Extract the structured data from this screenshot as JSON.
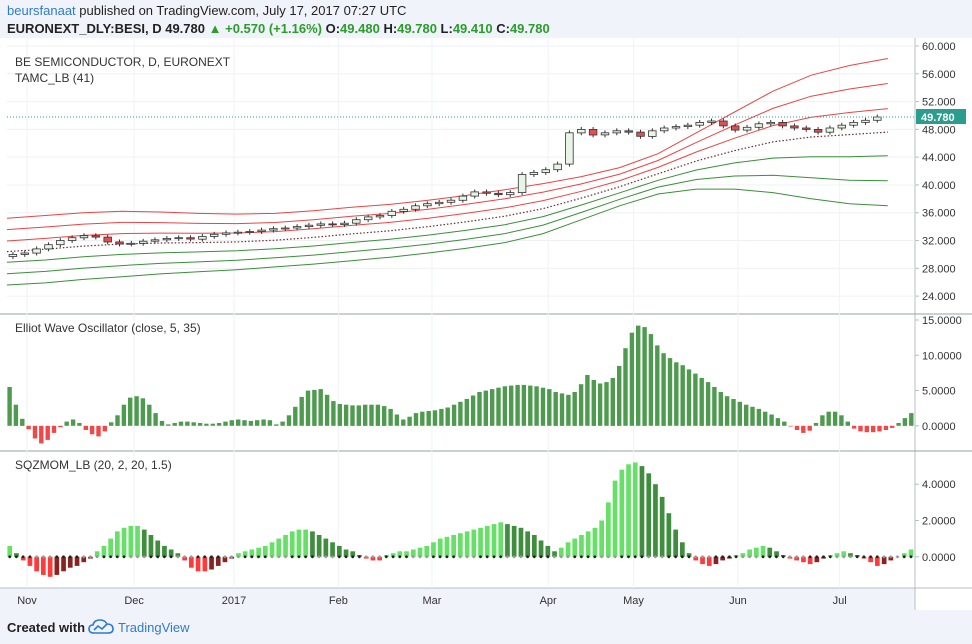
{
  "header": {
    "user": "beursfanaat",
    "published": "published on TradingView.com, July 17, 2017 07:27 UTC",
    "symbol": "EURONEXT_DLY:BESI, D",
    "last": "49.780",
    "change": "+0.570 (+1.16%)",
    "o_label": "O:",
    "o": "49.480",
    "h_label": "H:",
    "h": "49.780",
    "l_label": "L:",
    "l": "49.410",
    "c_label": "C:",
    "c": "49.780"
  },
  "footer": {
    "created": "Created with",
    "brand": "TradingView"
  },
  "colors": {
    "up": "#3a9a3a",
    "down": "#e05050",
    "accent": "#2e7bcf",
    "osc_up": "#4e9a4e",
    "osc_down": "#f04848",
    "mom_light": "#66e066",
    "mom_dark": "#3e8e3e"
  },
  "chart_data": [
    {
      "type": "candlestick",
      "title": "BE SEMICONDUCTOR, D, EURONEXT",
      "indicator_label": "TAMC_LB (41)",
      "y_ticks": [
        "60.000",
        "56.000",
        "52.000",
        "48.000",
        "44.000",
        "40.000",
        "36.000",
        "32.000",
        "28.000",
        "24.000"
      ],
      "y_range": [
        22,
        60
      ],
      "last_price_label": "49.780",
      "x_labels": [
        "Nov",
        "Dec",
        "2017",
        "Feb",
        "Mar",
        "Apr",
        "May",
        "Jun",
        "Jul"
      ],
      "close_series": [
        30.0,
        30.2,
        30.8,
        31.4,
        32.0,
        32.4,
        32.7,
        32.5,
        31.8,
        31.5,
        31.6,
        31.9,
        32.1,
        32.3,
        32.4,
        32.2,
        32.6,
        32.9,
        33.1,
        33.2,
        33.3,
        33.5,
        33.7,
        33.8,
        34.0,
        34.2,
        34.4,
        34.3,
        34.5,
        35.0,
        35.4,
        35.6,
        36.2,
        36.5,
        37.0,
        37.3,
        37.5,
        37.8,
        38.4,
        39.0,
        38.8,
        38.6,
        38.9,
        41.5,
        41.8,
        42.2,
        43.0,
        47.5,
        48.0,
        47.2,
        47.5,
        47.8,
        47.6,
        47.0,
        47.8,
        48.2,
        48.4,
        48.6,
        49.0,
        49.2,
        48.5,
        47.9,
        48.3,
        48.8,
        49.0,
        48.5,
        48.2,
        48.0,
        47.6,
        48.2,
        48.6,
        49.0,
        49.3,
        49.78
      ],
      "bands_upper": [
        35.2,
        35.6,
        36.0,
        36.2,
        36.1,
        35.9,
        35.8,
        35.9,
        36.3,
        36.8,
        37.2,
        37.8,
        38.5,
        39.3,
        40.2,
        41.2,
        42.5,
        44.5,
        47.5,
        50.5,
        53.5,
        55.8,
        57.2,
        58.2
      ],
      "bands_lower": [
        25.6,
        25.9,
        26.4,
        26.8,
        27.2,
        27.5,
        27.8,
        28.2,
        28.6,
        29.1,
        29.6,
        30.2,
        30.9,
        31.7,
        33.0,
        35.0,
        37.0,
        38.7,
        39.4,
        39.4,
        38.9,
        38.0,
        37.3,
        37.0
      ]
    },
    {
      "type": "bar",
      "title": "Elliot Wave Oscillator (close, 5, 35)",
      "y_ticks": [
        "15.0000",
        "10.0000",
        "5.0000",
        "0.0000"
      ],
      "y_range": [
        -3,
        15
      ],
      "values": [
        5.5,
        3.0,
        1.0,
        -0.5,
        -1.8,
        -2.5,
        -2.0,
        -1.0,
        -0.2,
        0.6,
        0.9,
        0.4,
        -0.6,
        -1.2,
        -1.5,
        -0.8,
        0.5,
        1.5,
        3.0,
        4.0,
        4.2,
        3.9,
        3.0,
        1.8,
        0.7,
        0.2,
        0.4,
        0.6,
        0.6,
        0.5,
        0.4,
        0.3,
        0.3,
        0.4,
        0.6,
        0.8,
        0.9,
        0.8,
        0.7,
        0.8,
        0.9,
        0.8,
        0.2,
        0.6,
        1.5,
        2.7,
        4.1,
        5.0,
        5.1,
        5.2,
        4.4,
        3.5,
        3.1,
        3.0,
        2.9,
        2.9,
        3.0,
        3.0,
        3.0,
        2.8,
        2.4,
        1.6,
        0.9,
        1.3,
        1.8,
        2.0,
        2.1,
        2.2,
        2.4,
        2.6,
        3.0,
        3.4,
        3.8,
        4.3,
        4.8,
        5.0,
        5.2,
        5.4,
        5.6,
        5.7,
        5.8,
        5.8,
        5.7,
        5.6,
        5.4,
        5.2,
        4.8,
        4.6,
        4.4,
        4.8,
        5.9,
        7.2,
        6.5,
        6.0,
        6.2,
        6.8,
        8.5,
        11.0,
        13.2,
        14.2,
        14.0,
        13.0,
        11.4,
        10.3,
        9.6,
        9.0,
        8.6,
        8.0,
        7.4,
        6.8,
        6.2,
        5.5,
        4.8,
        4.2,
        3.8,
        3.4,
        3.0,
        2.7,
        2.4,
        2.0,
        1.6,
        1.1,
        0.6,
        -0.1,
        -0.6,
        -1.0,
        -0.7,
        0.4,
        1.5,
        2.0,
        2.0,
        1.5,
        0.6,
        -0.4,
        -0.8,
        -0.9,
        -0.9,
        -0.8,
        -0.6,
        -0.3,
        0.4,
        1.1,
        1.8
      ]
    },
    {
      "type": "bar",
      "title": "SQZMOM_LB (20, 2, 20, 1.5)",
      "y_ticks": [
        "4.0000",
        "2.0000",
        "0.0000"
      ],
      "y_range": [
        -1.5,
        5.5
      ],
      "values": [
        0.6,
        0.2,
        -0.2,
        -0.5,
        -0.8,
        -1.0,
        -1.1,
        -1.0,
        -0.8,
        -0.6,
        -0.5,
        -0.3,
        -0.1,
        0.3,
        0.6,
        1.0,
        1.4,
        1.6,
        1.7,
        1.7,
        1.5,
        1.2,
        0.9,
        0.6,
        0.4,
        0.2,
        -0.2,
        -0.6,
        -0.8,
        -0.8,
        -0.7,
        -0.5,
        -0.3,
        -0.1,
        0.2,
        0.3,
        0.4,
        0.5,
        0.6,
        0.8,
        1.0,
        1.2,
        1.4,
        1.5,
        1.5,
        1.4,
        1.2,
        1.0,
        0.8,
        0.6,
        0.4,
        0.3,
        0.1,
        -0.1,
        -0.2,
        -0.2,
        0.1,
        0.2,
        0.3,
        0.3,
        0.4,
        0.5,
        0.6,
        0.8,
        1.0,
        1.1,
        1.2,
        1.3,
        1.4,
        1.5,
        1.6,
        1.7,
        1.8,
        1.9,
        1.8,
        1.7,
        1.6,
        1.4,
        1.2,
        0.9,
        0.6,
        0.3,
        0.5,
        0.8,
        1.0,
        1.2,
        1.4,
        1.6,
        2.0,
        3.0,
        4.2,
        4.8,
        5.1,
        5.2,
        5.0,
        4.6,
        4.0,
        3.3,
        2.4,
        1.5,
        0.8,
        0.2,
        -0.2,
        -0.4,
        -0.5,
        -0.4,
        -0.2,
        -0.1,
        0.1,
        0.2,
        0.4,
        0.5,
        0.6,
        0.5,
        0.3,
        0.1,
        -0.1,
        -0.2,
        -0.3,
        -0.4,
        -0.3,
        -0.1,
        0.1,
        0.2,
        0.3,
        0.2,
        0.1,
        -0.1,
        -0.3,
        -0.5,
        -0.4,
        -0.2,
        0.0,
        0.2,
        0.4
      ]
    }
  ]
}
